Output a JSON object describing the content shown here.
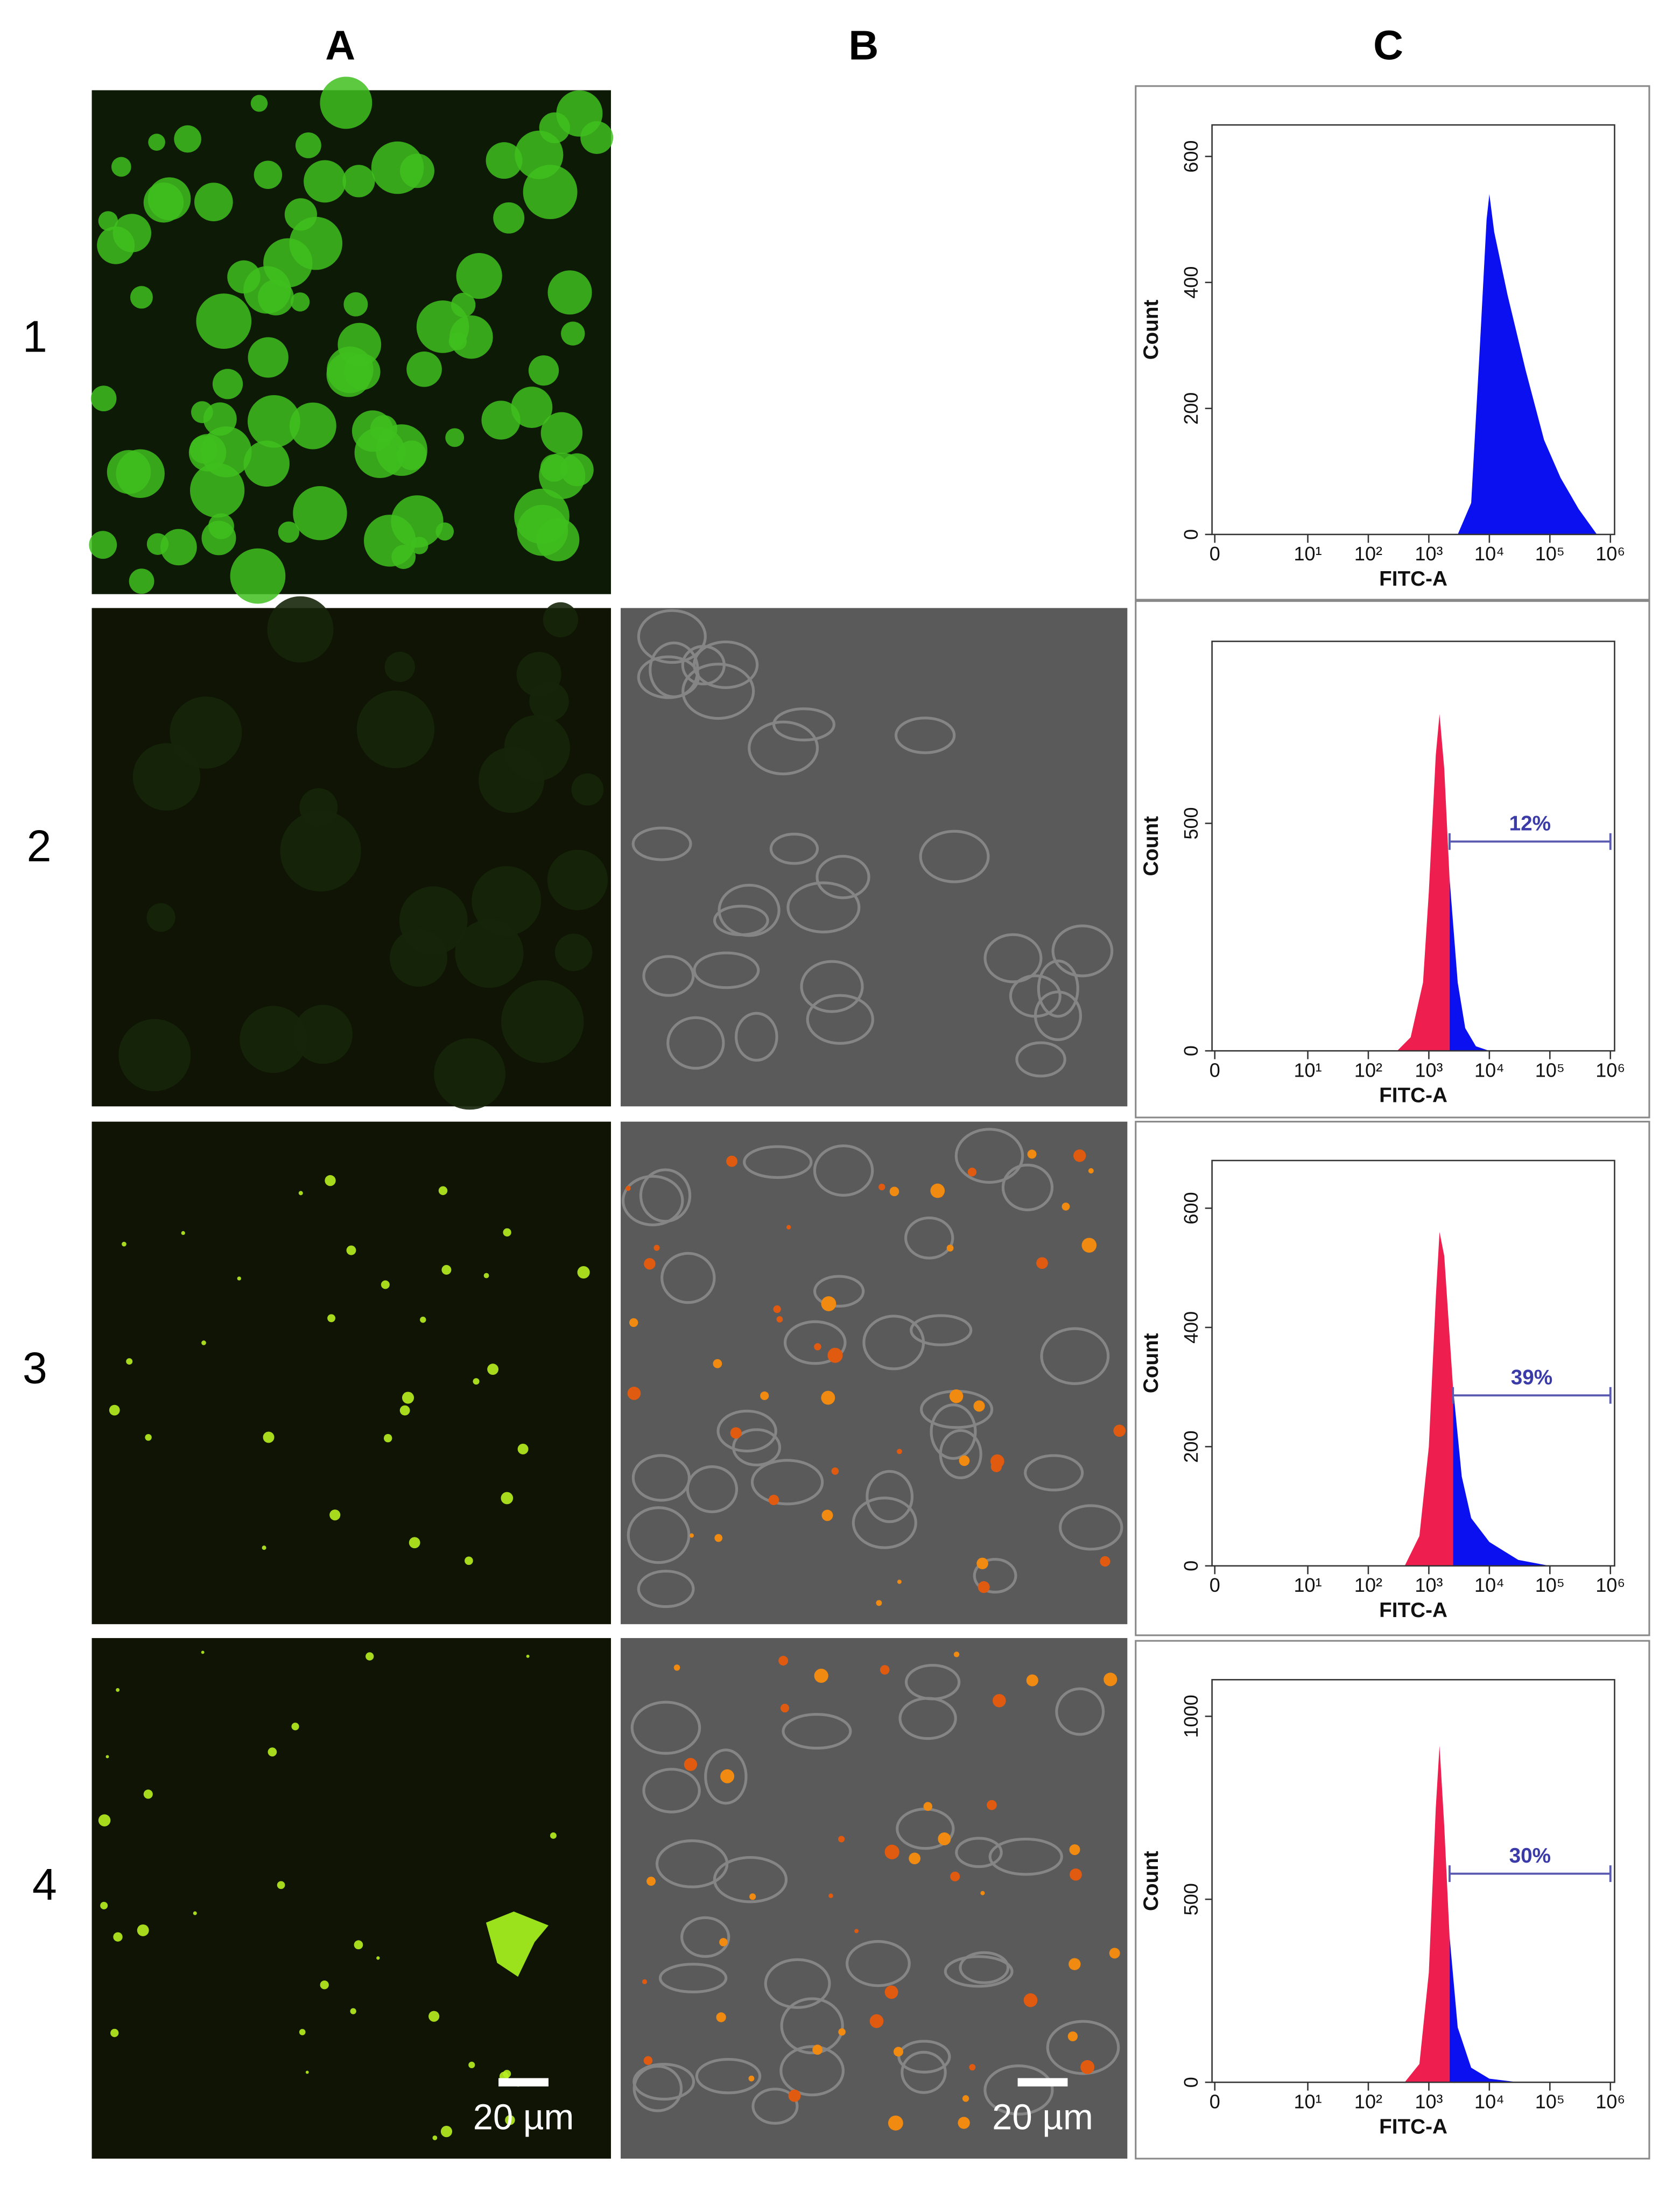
{
  "column_labels": [
    "A",
    "B",
    "C"
  ],
  "row_labels": [
    "1",
    "2",
    "3",
    "4"
  ],
  "scale_bar_label": "20 µm",
  "chart_data": [
    {
      "type": "area",
      "xlabel": "FITC-A",
      "ylabel": "Count",
      "xscale": "biexponential",
      "xlim": [
        0,
        1000000
      ],
      "xticks": [
        0,
        {
          "value": 10,
          "label": "10¹"
        },
        {
          "value": 100,
          "label": "10²"
        },
        {
          "value": 1000,
          "label": "10³"
        },
        {
          "value": 10000,
          "label": "10⁴"
        },
        {
          "value": 100000,
          "label": "10⁵"
        },
        {
          "value": 1000000,
          "label": "10⁶"
        }
      ],
      "ylim": [
        0,
        650
      ],
      "yticks": [
        0,
        200,
        400,
        600
      ],
      "series": [
        {
          "color": "#0a10f0",
          "x": [
            3000,
            5000,
            7000,
            9000,
            10000,
            12000,
            20000,
            40000,
            80000,
            150000,
            300000,
            600000
          ],
          "values": [
            0,
            50,
            300,
            500,
            540,
            480,
            380,
            260,
            150,
            90,
            40,
            0
          ]
        }
      ]
    },
    {
      "type": "area",
      "xlabel": "FITC-A",
      "ylabel": "Count",
      "xscale": "biexponential",
      "xlim": [
        0,
        1000000
      ],
      "xticks": [
        0,
        {
          "value": 10,
          "label": "10¹"
        },
        {
          "value": 100,
          "label": "10²"
        },
        {
          "value": 1000,
          "label": "10³"
        },
        {
          "value": 10000,
          "label": "10⁴"
        },
        {
          "value": 100000,
          "label": "10⁵"
        },
        {
          "value": 1000000,
          "label": "10⁶"
        }
      ],
      "ylim": [
        0,
        900
      ],
      "yticks": [
        0,
        500
      ],
      "series": [
        {
          "color": "#ee1f4f",
          "x": [
            300,
            500,
            800,
            1000,
            1300,
            1500,
            1800,
            2200
          ],
          "values": [
            0,
            30,
            150,
            350,
            650,
            740,
            620,
            380
          ]
        },
        {
          "color": "#0a10f0",
          "x": [
            2200,
            3000,
            4000,
            6000,
            10000
          ],
          "values": [
            380,
            150,
            50,
            10,
            0
          ]
        }
      ],
      "gate": {
        "label": "12%",
        "x": [
          2200,
          1000000
        ],
        "y": 460
      }
    },
    {
      "type": "area",
      "xlabel": "FITC-A",
      "ylabel": "Count",
      "xscale": "biexponential",
      "xlim": [
        0,
        1000000
      ],
      "xticks": [
        0,
        {
          "value": 10,
          "label": "10¹"
        },
        {
          "value": 100,
          "label": "10²"
        },
        {
          "value": 1000,
          "label": "10³"
        },
        {
          "value": 10000,
          "label": "10⁴"
        },
        {
          "value": 100000,
          "label": "10⁵"
        },
        {
          "value": 1000000,
          "label": "10⁶"
        }
      ],
      "ylim": [
        0,
        680
      ],
      "yticks": [
        0,
        200,
        400,
        600
      ],
      "series": [
        {
          "color": "#ee1f4f",
          "x": [
            400,
            700,
            1000,
            1300,
            1500,
            1800,
            2500
          ],
          "values": [
            0,
            50,
            200,
            450,
            560,
            520,
            300
          ]
        },
        {
          "color": "#0a10f0",
          "x": [
            2500,
            3500,
            5000,
            10000,
            30000,
            100000
          ],
          "values": [
            300,
            150,
            80,
            40,
            10,
            0
          ]
        }
      ],
      "gate": {
        "label": "39%",
        "x": [
          2500,
          1000000
        ],
        "y": 286
      }
    },
    {
      "type": "area",
      "xlabel": "FITC-A",
      "ylabel": "Count",
      "xscale": "biexponential",
      "xlim": [
        0,
        1000000
      ],
      "xticks": [
        0,
        {
          "value": 10,
          "label": "10¹"
        },
        {
          "value": 100,
          "label": "10²"
        },
        {
          "value": 1000,
          "label": "10³"
        },
        {
          "value": 10000,
          "label": "10⁴"
        },
        {
          "value": 100000,
          "label": "10⁵"
        },
        {
          "value": 1000000,
          "label": "10⁶"
        }
      ],
      "ylim": [
        0,
        1100
      ],
      "yticks": [
        0,
        500,
        1000
      ],
      "series": [
        {
          "color": "#ee1f4f",
          "x": [
            400,
            700,
            1000,
            1300,
            1500,
            1800,
            2200
          ],
          "values": [
            0,
            50,
            300,
            750,
            920,
            700,
            400
          ]
        },
        {
          "color": "#0a10f0",
          "x": [
            2200,
            3000,
            5000,
            10000,
            30000
          ],
          "values": [
            400,
            150,
            40,
            10,
            0
          ]
        }
      ],
      "gate": {
        "label": "30%",
        "x": [
          2200,
          1000000
        ],
        "y": 570
      }
    }
  ]
}
